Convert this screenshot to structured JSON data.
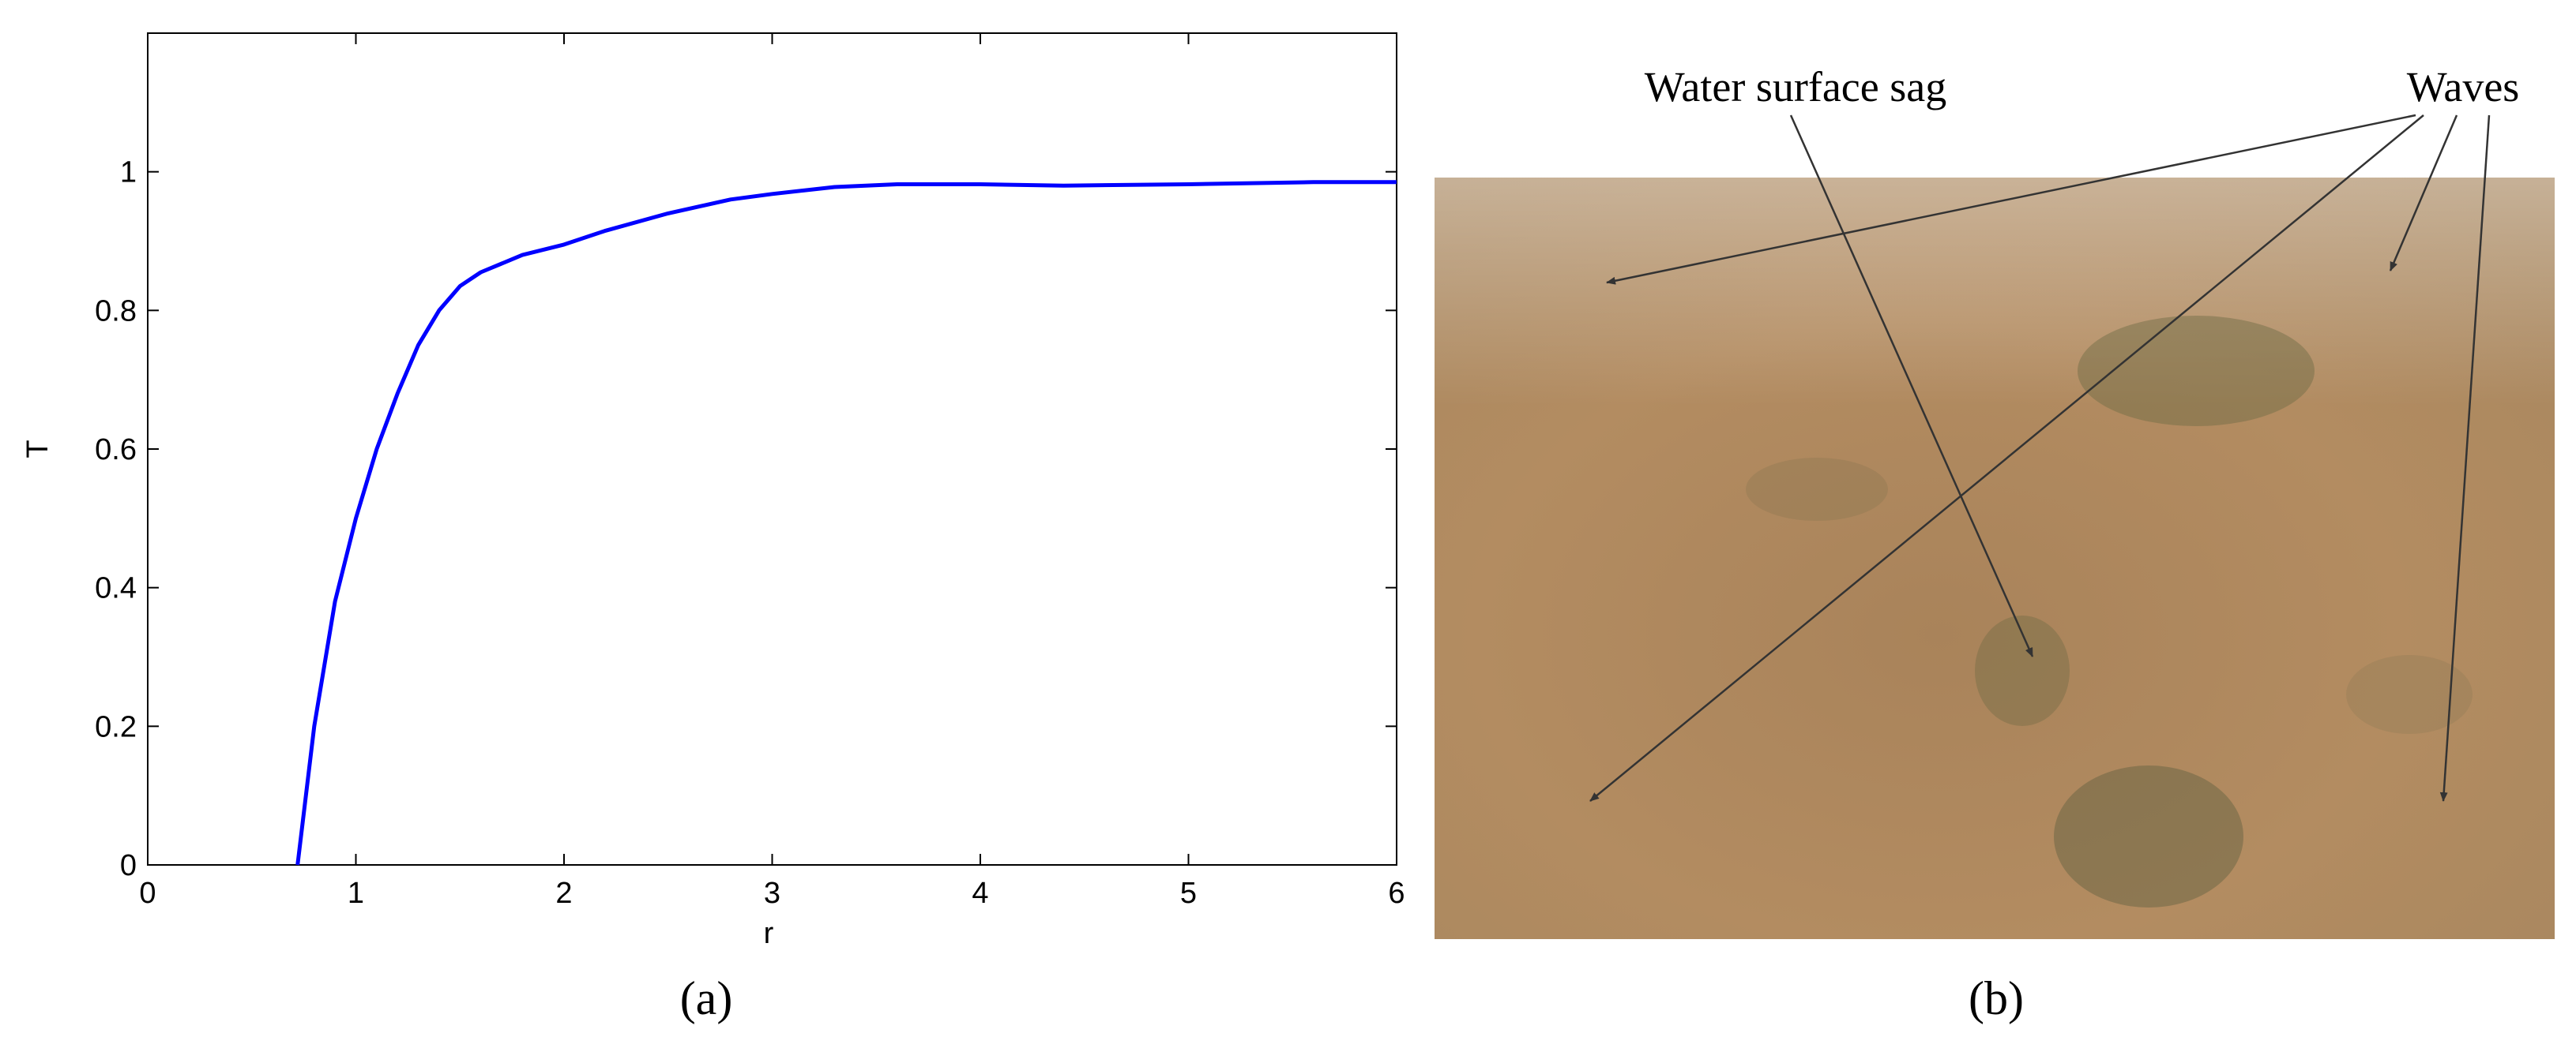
{
  "chart_data": {
    "type": "line",
    "xlabel": "r",
    "ylabel": "T",
    "x": [
      0.72,
      0.8,
      0.9,
      1.0,
      1.1,
      1.2,
      1.3,
      1.4,
      1.5,
      1.6,
      1.8,
      2.0,
      2.2,
      2.5,
      2.8,
      3.0,
      3.3,
      3.6,
      4.0,
      4.4,
      5.0,
      5.6,
      6.0
    ],
    "values": [
      0,
      0.2,
      0.38,
      0.5,
      0.6,
      0.68,
      0.75,
      0.8,
      0.835,
      0.855,
      0.88,
      0.895,
      0.915,
      0.94,
      0.96,
      0.968,
      0.978,
      0.982,
      0.982,
      0.98,
      0.982,
      0.985,
      0.985
    ],
    "color": "#0000ff",
    "xlim": [
      0,
      6
    ],
    "ylim": [
      0,
      1.2
    ],
    "xticks": [
      0,
      1,
      2,
      3,
      4,
      5,
      6
    ],
    "yticks": [
      0,
      0.2,
      0.4,
      0.6,
      0.8,
      1
    ]
  },
  "panel_labels": [
    "(a)",
    "(b)"
  ],
  "photo": {
    "annotations": [
      "Water surface sag",
      "Waves"
    ]
  }
}
